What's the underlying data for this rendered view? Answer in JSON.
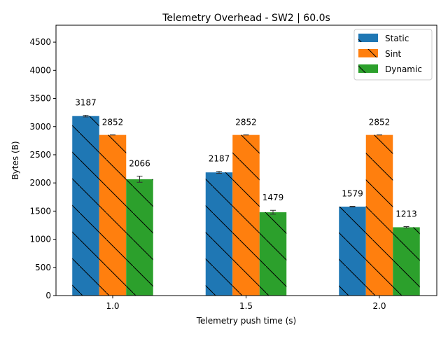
{
  "chart_data": {
    "type": "bar",
    "title": "Telemetry Overhead - SW2 | 60.0s",
    "xlabel": "Telemetry push time (s)",
    "ylabel": "Bytes (B)",
    "categories": [
      "1.0",
      "1.5",
      "2.0"
    ],
    "ylim": [
      0,
      4800
    ],
    "yticks": [
      0,
      500,
      1000,
      1500,
      2000,
      2500,
      3000,
      3500,
      4000,
      4500
    ],
    "grid": false,
    "legend_position": "top-right",
    "series": [
      {
        "name": "Static",
        "color": "#1f77b4",
        "hatch": "diagonal",
        "values": [
          3187,
          2187,
          1579
        ],
        "errors": [
          15,
          18,
          6
        ],
        "labels": [
          "3187",
          "2187",
          "1579"
        ]
      },
      {
        "name": "Sint",
        "color": "#ff7f0e",
        "hatch": "diagonal",
        "values": [
          2852,
          2852,
          2852
        ],
        "errors": [
          0,
          0,
          0
        ],
        "labels": [
          "2852",
          "2852",
          "2852"
        ]
      },
      {
        "name": "Dynamic",
        "color": "#2ca02c",
        "hatch": "diagonal",
        "values": [
          2066,
          1479,
          1213
        ],
        "errors": [
          55,
          35,
          12
        ],
        "labels": [
          "2066",
          "1479",
          "1213"
        ]
      }
    ]
  }
}
